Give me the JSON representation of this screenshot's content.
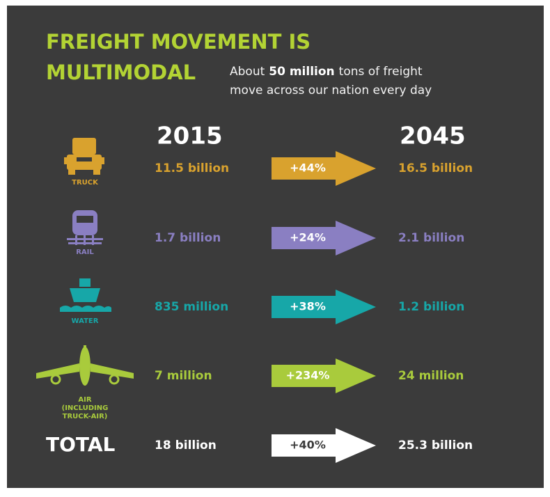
{
  "title": {
    "line1": "FREIGHT MOVEMENT IS",
    "line2": "MULTIMODAL"
  },
  "subtitle": {
    "before": "About",
    "bold": "50 million",
    "after": "tons of freight",
    "line2": "move across our nation every day"
  },
  "years": [
    "2015",
    "2045"
  ],
  "rows": [
    {
      "label": [
        "TRUCK"
      ],
      "from": "11.5 billion",
      "change": "+44%",
      "to": "16.5 billion",
      "color": "#d9a22e"
    },
    {
      "label": [
        "RAIL"
      ],
      "from": "1.7 billion",
      "change": "+24%",
      "to": "2.1 billion",
      "color": "#8a7fc2"
    },
    {
      "label": [
        "WATER"
      ],
      "from": "835 million",
      "change": "+38%",
      "to": "1.2 billion",
      "color": "#17a7a8"
    },
    {
      "label": [
        "AIR",
        "(INCLUDING",
        "TRUCK-AIR)"
      ],
      "from": "7 million",
      "change": "+234%",
      "to": "24 million",
      "color": "#a9cb3c"
    },
    {
      "label": [
        "TOTAL"
      ],
      "from": "18 billion",
      "change": "+40%",
      "to": "25.3 billion",
      "color": "#ffffff"
    }
  ]
}
